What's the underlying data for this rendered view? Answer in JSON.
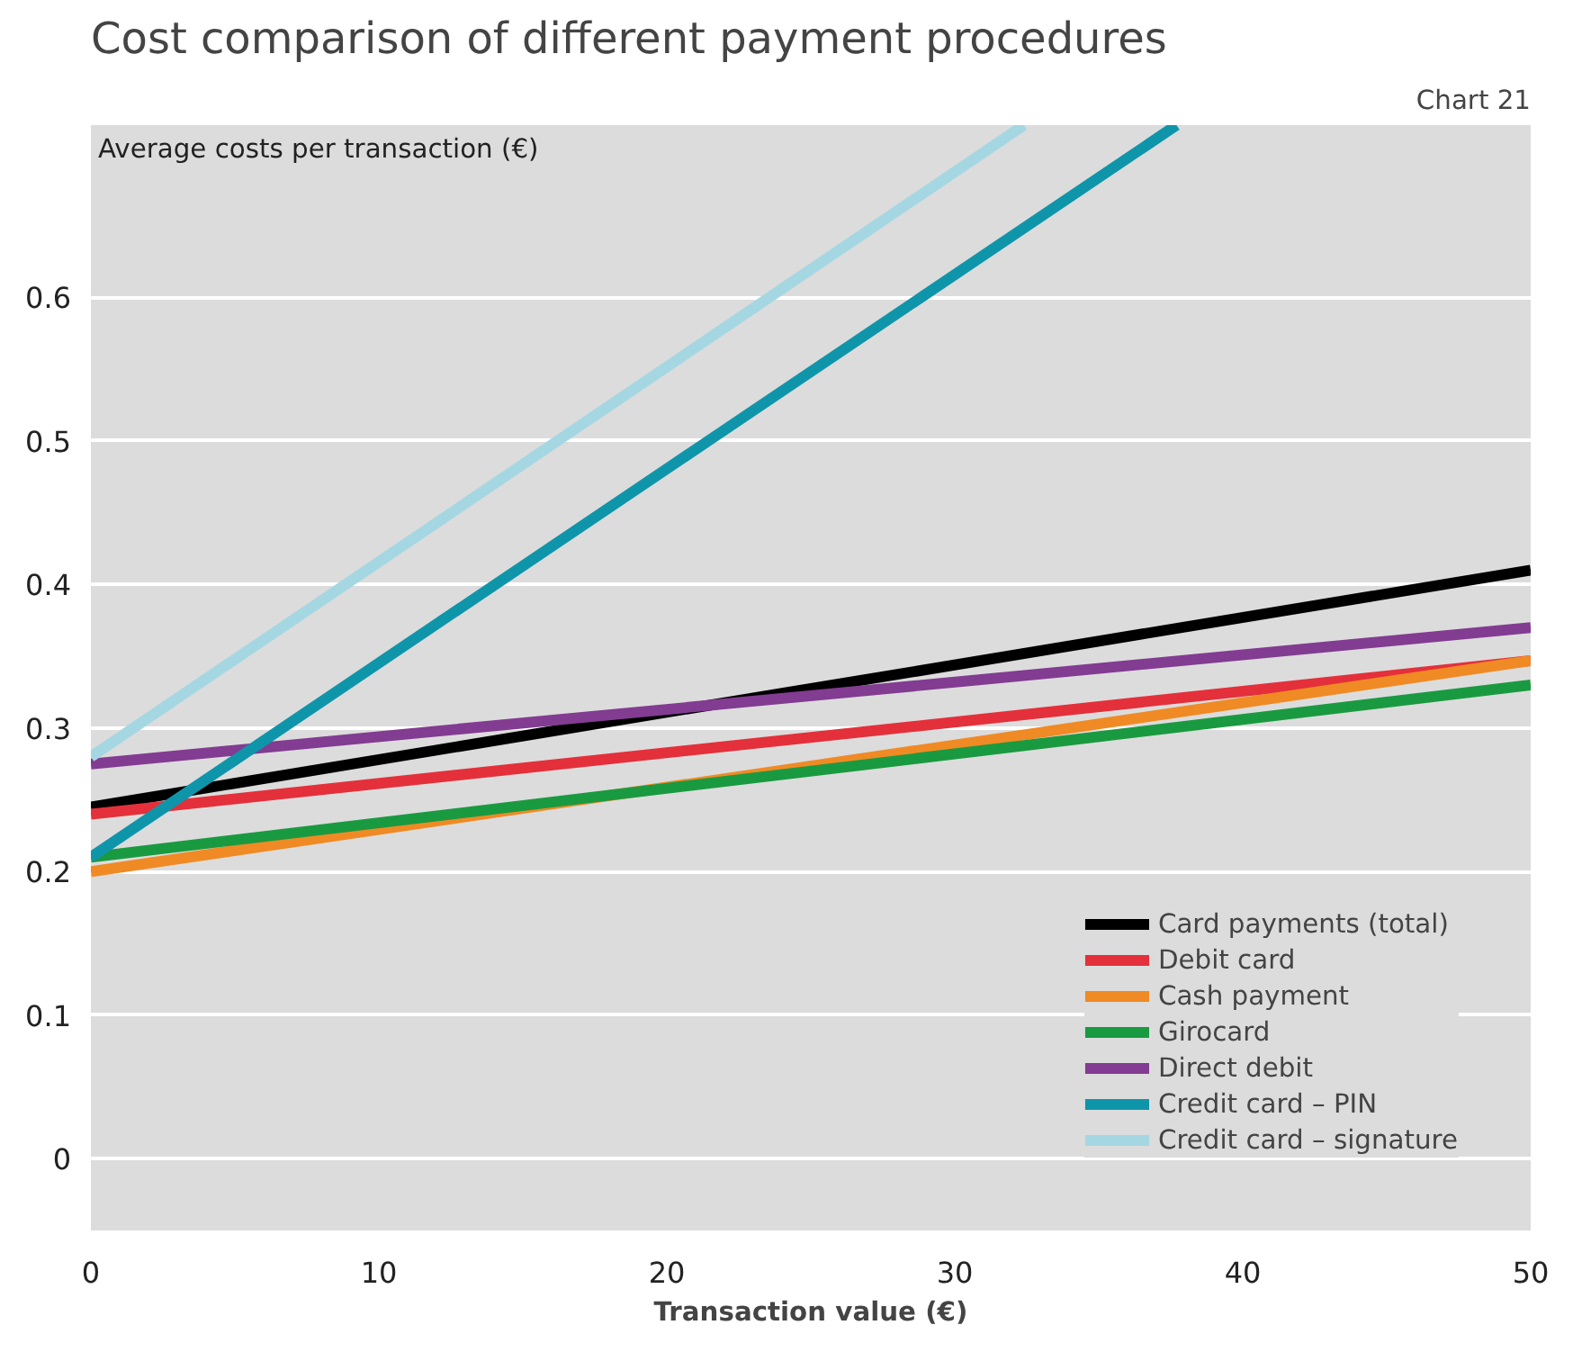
{
  "chart_data": {
    "type": "line",
    "title": "Cost comparison of different payment procedures",
    "annotations": [
      "Chart 21"
    ],
    "xlabel": "Transaction value (€)",
    "ylabel": "Average costs per transaction (€)",
    "xlim": [
      0,
      50
    ],
    "xticks": [
      0,
      10,
      20,
      30,
      40,
      50
    ],
    "ylim": [
      -0.05,
      0.72
    ],
    "yticks": [
      0,
      0.1,
      0.2,
      0.3,
      0.4,
      0.5,
      0.6
    ],
    "grid": "y",
    "legend": "bottom right",
    "line_style": "solid",
    "series": [
      {
        "name": "Card payments (total)",
        "color": "#000000",
        "x": [
          0,
          50
        ],
        "values": [
          0.245,
          0.41
        ]
      },
      {
        "name": "Debit card",
        "color": "#e4303b",
        "x": [
          0,
          50
        ],
        "values": [
          0.24,
          0.347
        ]
      },
      {
        "name": "Cash payment",
        "color": "#f08a24",
        "x": [
          0,
          50
        ],
        "values": [
          0.2,
          0.347
        ]
      },
      {
        "name": "Girocard",
        "color": "#1a9a40",
        "x": [
          0,
          50
        ],
        "values": [
          0.21,
          0.33
        ]
      },
      {
        "name": "Direct debit",
        "color": "#823c91",
        "x": [
          0,
          50
        ],
        "values": [
          0.275,
          0.37
        ]
      },
      {
        "name": "Credit card – PIN",
        "color": "#0f95aa",
        "x": [
          0,
          37.7
        ],
        "values": [
          0.21,
          0.72
        ]
      },
      {
        "name": "Credit card – signature",
        "color": "#a5d7e2",
        "x": [
          0,
          32.4
        ],
        "values": [
          0.28,
          0.72
        ]
      }
    ]
  }
}
